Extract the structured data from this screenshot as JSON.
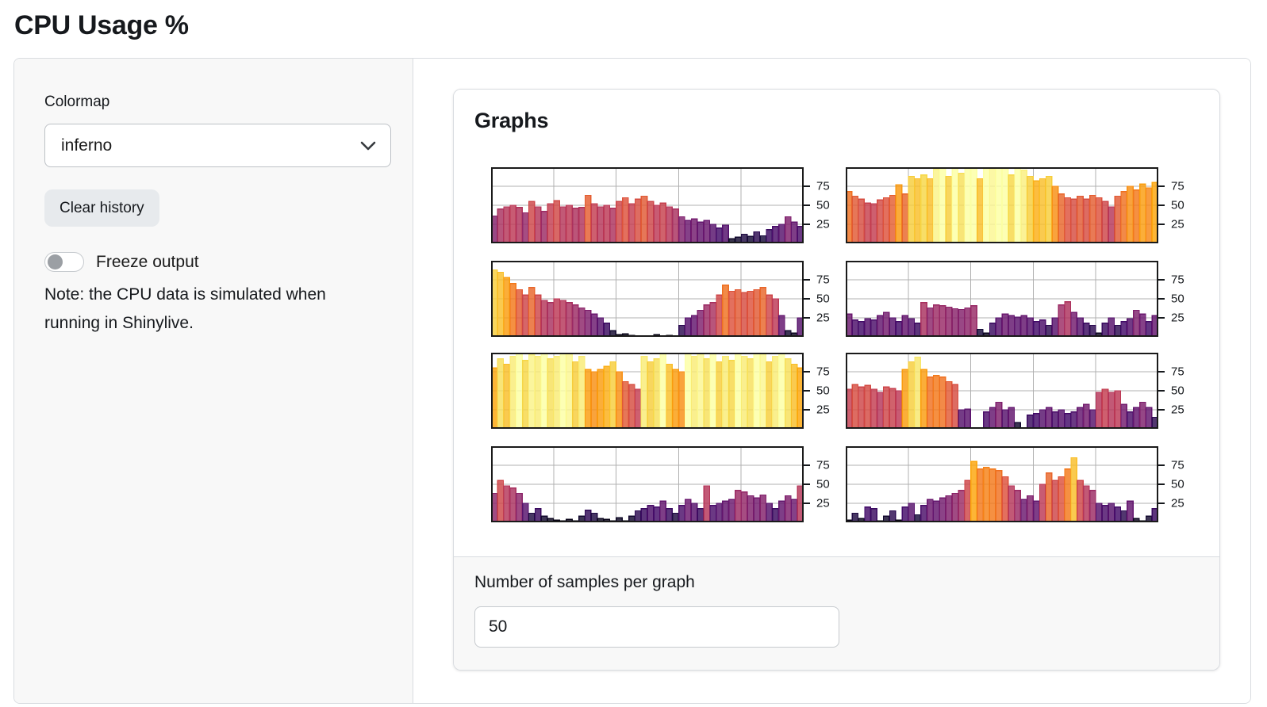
{
  "page": {
    "title": "CPU Usage %"
  },
  "sidebar": {
    "colormap_label": "Colormap",
    "colormap_value": "inferno",
    "clear_button_label": "Clear history",
    "freeze_label": "Freeze output",
    "note": "Note: the CPU data is simulated when running in Shinylive."
  },
  "main": {
    "card_title": "Graphs",
    "samples_label": "Number of samples per graph",
    "samples_value": "50"
  },
  "icons": {
    "select_chevron": "chevron-down-icon"
  },
  "colors": {
    "sidebar_bg": "#f8f8f8",
    "frame_border": "#d9dce0",
    "grid_line": "#b0b0b0",
    "spine": "#1a1a1a"
  },
  "chart_data": {
    "type": "bar",
    "title": "Graphs",
    "colormap": "inferno",
    "samples_per_graph": 50,
    "ylim": [
      0,
      100
    ],
    "yticks": [
      25,
      50,
      75
    ],
    "x_gridlines": 4,
    "grid": true,
    "ticks_side": "right",
    "layout": {
      "columns": 2,
      "rows": 4
    },
    "colormap_stops": [
      [
        0.0,
        0,
        0,
        4
      ],
      [
        0.1,
        22,
        11,
        57
      ],
      [
        0.2,
        66,
        10,
        104
      ],
      [
        0.3,
        106,
        23,
        110
      ],
      [
        0.4,
        147,
        38,
        103
      ],
      [
        0.5,
        188,
        55,
        84
      ],
      [
        0.6,
        221,
        81,
        58
      ],
      [
        0.7,
        243,
        120,
        25
      ],
      [
        0.8,
        252,
        165,
        10
      ],
      [
        0.9,
        246,
        215,
        70
      ],
      [
        1.0,
        252,
        255,
        164
      ]
    ],
    "charts": [
      {
        "name": "cpu-graph-1",
        "values": [
          36,
          45,
          48,
          50,
          47,
          40,
          55,
          48,
          42,
          52,
          56,
          48,
          50,
          46,
          47,
          63,
          52,
          48,
          50,
          46,
          55,
          60,
          52,
          58,
          62,
          55,
          50,
          53,
          48,
          45,
          35,
          30,
          32,
          28,
          30,
          25,
          20,
          24,
          6,
          8,
          12,
          9,
          15,
          10,
          18,
          22,
          25,
          35,
          28,
          22
        ]
      },
      {
        "name": "cpu-graph-2",
        "values": [
          68,
          62,
          58,
          53,
          52,
          57,
          60,
          63,
          77,
          65,
          88,
          85,
          90,
          85,
          97,
          100,
          88,
          100,
          92,
          100,
          100,
          85,
          100,
          98,
          100,
          100,
          90,
          100,
          96,
          88,
          82,
          85,
          88,
          75,
          65,
          60,
          58,
          62,
          58,
          63,
          60,
          55,
          48,
          62,
          68,
          75,
          70,
          78,
          73,
          80
        ]
      },
      {
        "name": "cpu-graph-3",
        "values": [
          88,
          85,
          78,
          70,
          62,
          55,
          65,
          55,
          48,
          45,
          50,
          48,
          45,
          42,
          38,
          35,
          30,
          25,
          18,
          8,
          3,
          4,
          2,
          0,
          1,
          0,
          3,
          0,
          2,
          1,
          15,
          25,
          28,
          35,
          42,
          45,
          55,
          68,
          60,
          62,
          58,
          60,
          62,
          65,
          55,
          50,
          28,
          8,
          5,
          25
        ]
      },
      {
        "name": "cpu-graph-4",
        "values": [
          30,
          22,
          20,
          24,
          22,
          28,
          32,
          25,
          20,
          28,
          24,
          18,
          45,
          38,
          42,
          41,
          39,
          37,
          36,
          38,
          41,
          10,
          5,
          18,
          25,
          30,
          28,
          26,
          28,
          25,
          20,
          22,
          15,
          25,
          42,
          46,
          32,
          25,
          18,
          15,
          5,
          18,
          25,
          15,
          20,
          24,
          35,
          30,
          20,
          28
        ]
      },
      {
        "name": "cpu-graph-5",
        "values": [
          80,
          92,
          85,
          95,
          100,
          90,
          97,
          95,
          100,
          92,
          95,
          100,
          98,
          88,
          95,
          78,
          75,
          78,
          82,
          88,
          75,
          62,
          58,
          52,
          95,
          88,
          92,
          100,
          85,
          78,
          75,
          100,
          95,
          98,
          92,
          100,
          88,
          95,
          90,
          100,
          95,
          92,
          100,
          98,
          88,
          95,
          100,
          92,
          85,
          80
        ]
      },
      {
        "name": "cpu-graph-6",
        "values": [
          52,
          58,
          55,
          57,
          52,
          48,
          55,
          53,
          50,
          78,
          88,
          94,
          78,
          68,
          70,
          68,
          62,
          58,
          25,
          26,
          0,
          0,
          22,
          28,
          35,
          25,
          28,
          8,
          0,
          18,
          20,
          25,
          28,
          22,
          25,
          20,
          22,
          28,
          32,
          25,
          48,
          52,
          48,
          50,
          32,
          22,
          28,
          35,
          28,
          15
        ]
      },
      {
        "name": "cpu-graph-7",
        "values": [
          38,
          55,
          48,
          45,
          38,
          25,
          12,
          18,
          8,
          5,
          3,
          2,
          4,
          2,
          8,
          16,
          12,
          5,
          4,
          2,
          6,
          2,
          8,
          15,
          18,
          22,
          20,
          28,
          18,
          12,
          22,
          30,
          25,
          18,
          48,
          22,
          25,
          28,
          30,
          42,
          40,
          35,
          32,
          36,
          25,
          18,
          28,
          35,
          30,
          48
        ]
      },
      {
        "name": "cpu-graph-8",
        "values": [
          3,
          12,
          5,
          20,
          18,
          2,
          8,
          15,
          3,
          20,
          25,
          10,
          22,
          30,
          28,
          32,
          35,
          38,
          42,
          55,
          80,
          70,
          72,
          70,
          68,
          60,
          48,
          42,
          30,
          35,
          28,
          50,
          65,
          55,
          60,
          70,
          85,
          55,
          48,
          42,
          25,
          22,
          25,
          20,
          15,
          28,
          5,
          2,
          8,
          18
        ]
      }
    ]
  }
}
